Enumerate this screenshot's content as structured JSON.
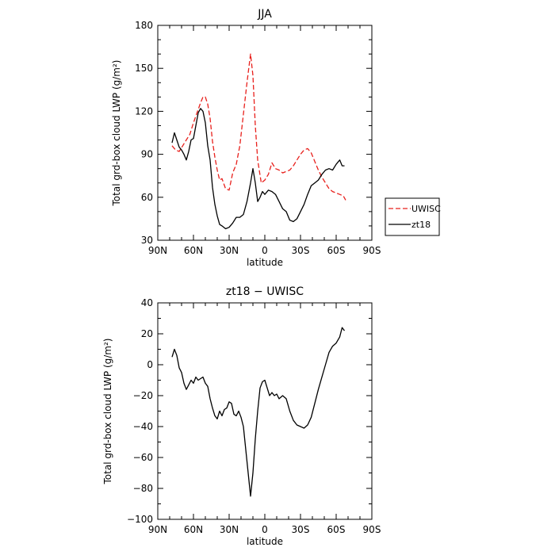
{
  "chart_data": [
    {
      "type": "line",
      "title": "JJA",
      "xlabel": "latitude",
      "ylabel": "Total grd-box cloud LWP (g/m²)",
      "xlim": [
        90,
        -90
      ],
      "ylim": [
        30,
        180
      ],
      "x_ticks": [
        90,
        60,
        30,
        0,
        -30,
        -60,
        -90
      ],
      "x_tick_labels": [
        "90N",
        "60N",
        "30N",
        "0",
        "30S",
        "60S",
        "90S"
      ],
      "y_ticks": [
        30,
        60,
        90,
        120,
        150,
        180
      ],
      "y_tick_labels": [
        "30",
        "60",
        "90",
        "120",
        "150",
        "180"
      ],
      "legend_position": "right",
      "series": [
        {
          "name": "UWISC",
          "color": "#e8201c",
          "dash": "dashed",
          "x": [
            78,
            75,
            72,
            69,
            66,
            63,
            60,
            57,
            54,
            52,
            50,
            48,
            46,
            44,
            42,
            40,
            38,
            36,
            33,
            30,
            27,
            24,
            21,
            18,
            15,
            12,
            10,
            8,
            6,
            3,
            0,
            -3,
            -6,
            -9,
            -12,
            -15,
            -18,
            -21,
            -24,
            -27,
            -30,
            -33,
            -36,
            -39,
            -42,
            -45,
            -48,
            -51,
            -54,
            -57,
            -60,
            -63,
            -66,
            -68
          ],
          "y": [
            96,
            93,
            92,
            96,
            100,
            104,
            112,
            119,
            126,
            130,
            130,
            125,
            115,
            99,
            88,
            79,
            72,
            73,
            66,
            65,
            77,
            83,
            96,
            118,
            140,
            160,
            145,
            110,
            86,
            70,
            72,
            76,
            84,
            80,
            79,
            77,
            78,
            79,
            82,
            86,
            90,
            93,
            94,
            91,
            85,
            79,
            74,
            70,
            66,
            64,
            63,
            62,
            61,
            58
          ]
        },
        {
          "name": "zt18",
          "color": "#000000",
          "dash": "solid",
          "x": [
            78,
            76,
            74,
            72,
            70,
            68,
            66,
            64,
            62,
            60,
            58,
            56,
            54,
            52,
            50,
            48,
            46,
            44,
            42,
            40,
            38,
            36,
            33,
            30,
            27,
            24,
            21,
            18,
            15,
            12,
            10,
            8,
            6,
            4,
            2,
            0,
            -3,
            -6,
            -9,
            -12,
            -15,
            -18,
            -21,
            -24,
            -27,
            -30,
            -33,
            -36,
            -39,
            -42,
            -45,
            -48,
            -51,
            -54,
            -57,
            -60,
            -63,
            -65,
            -67
          ],
          "y": [
            98,
            105,
            100,
            95,
            93,
            90,
            86,
            92,
            100,
            101,
            110,
            119,
            122,
            120,
            112,
            96,
            86,
            67,
            55,
            47,
            41,
            40,
            38,
            39,
            42,
            46,
            46,
            48,
            57,
            70,
            80,
            70,
            57,
            60,
            64,
            62,
            65,
            64,
            62,
            57,
            52,
            50,
            44,
            43,
            45,
            50,
            55,
            62,
            68,
            70,
            72,
            76,
            79,
            80,
            79,
            83,
            86,
            82,
            82
          ]
        }
      ]
    },
    {
      "type": "line",
      "title": "zt18 − UWISC",
      "xlabel": "latitude",
      "ylabel": "Total grd-box cloud LWP (g/m²)",
      "xlim": [
        90,
        -90
      ],
      "ylim": [
        -100,
        40
      ],
      "x_ticks": [
        90,
        60,
        30,
        0,
        -30,
        -60,
        -90
      ],
      "x_tick_labels": [
        "90N",
        "60N",
        "30N",
        "0",
        "30S",
        "60S",
        "90S"
      ],
      "y_ticks": [
        -100,
        -80,
        -60,
        -40,
        -20,
        0,
        20,
        40
      ],
      "y_tick_labels": [
        "−100",
        "−80",
        "−60",
        "−40",
        "−20",
        "0",
        "20",
        "40"
      ],
      "series": [
        {
          "color": "#000000",
          "dash": "solid",
          "x": [
            78,
            76,
            74,
            72,
            70,
            68,
            66,
            64,
            62,
            60,
            58,
            56,
            54,
            52,
            50,
            48,
            46,
            44,
            42,
            40,
            38,
            36,
            34,
            32,
            30,
            28,
            26,
            24,
            22,
            20,
            18,
            16,
            14,
            12,
            10,
            8,
            6,
            4,
            2,
            0,
            -2,
            -4,
            -6,
            -8,
            -10,
            -12,
            -15,
            -18,
            -21,
            -24,
            -27,
            -30,
            -33,
            -36,
            -39,
            -42,
            -45,
            -48,
            -51,
            -54,
            -57,
            -60,
            -63,
            -65,
            -67
          ],
          "y": [
            5,
            10,
            6,
            -2,
            -5,
            -12,
            -16,
            -13,
            -10,
            -12,
            -8,
            -10,
            -9,
            -8,
            -12,
            -14,
            -22,
            -28,
            -33,
            -35,
            -30,
            -33,
            -29,
            -28,
            -24,
            -25,
            -32,
            -33,
            -30,
            -34,
            -40,
            -55,
            -70,
            -85,
            -70,
            -48,
            -30,
            -15,
            -11,
            -10,
            -15,
            -20,
            -18,
            -20,
            -19,
            -22,
            -20,
            -22,
            -30,
            -36,
            -39,
            -40,
            -41,
            -39,
            -34,
            -25,
            -16,
            -8,
            0,
            8,
            12,
            14,
            18,
            24,
            22
          ]
        }
      ]
    }
  ]
}
